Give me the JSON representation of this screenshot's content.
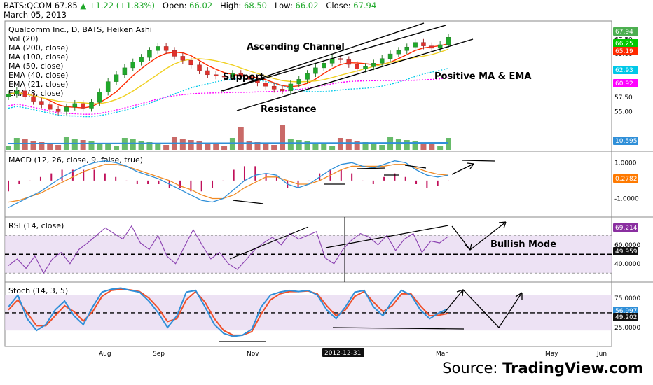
{
  "header": {
    "symbol": "BATS:QCOM",
    "last": "67.85",
    "change": "+1.22 (+1.83%)",
    "open_label": "Open:",
    "open": "66.02",
    "high_label": "High:",
    "high": "68.50",
    "low_label": "Low:",
    "low": "66.02",
    "close_label": "Close:",
    "close": "67.94",
    "date": "March 05, 2013"
  },
  "source": {
    "prefix": "Source: ",
    "brand": "TradingView.com"
  },
  "colors": {
    "up": "#1fa82a",
    "down": "#e1312b",
    "macd": "#2f8fd8",
    "signal": "#f08a24",
    "hist": "#c0105a",
    "rsi": "#8a3fb0",
    "stoch_k": "#2f8fd8",
    "stoch_d": "#f0502a",
    "volma": "#2f8fd8",
    "panel_fill": "#e6d5f0"
  },
  "chart_data": [
    {
      "type": "candlestick",
      "title": "Qualcomm Inc., D, BATS, Heiken Ashi",
      "legend": [
        "Vol (20)",
        "MA (200, close)",
        "MA (100, close)",
        "MA (50, close)",
        "EMA (40, close)",
        "EMA (21, close)",
        "EMA (8, close)"
      ],
      "x_ticks": [
        "Aug",
        "Sep",
        "Nov",
        "Mar",
        "May",
        "Jun"
      ],
      "y_ticks": [
        "67.50",
        "65.00",
        "62.50",
        "60.00",
        "57.50",
        "55.00"
      ],
      "ylim": [
        52.5,
        70.0
      ],
      "last_value_tags": [
        {
          "value": "67.94",
          "color": "#4caf50"
        },
        {
          "value": "66.25",
          "color": "#00c800"
        },
        {
          "value": "65.19",
          "color": "#ff2a00"
        },
        {
          "value": "62.93",
          "color": "#00c8e8"
        },
        {
          "value": "60.92",
          "color": "#ff00ff"
        },
        {
          "value": "10.595M",
          "color": "#2f8fd8"
        }
      ],
      "annotations": [
        "Ascending Channel",
        "Support",
        "Resistance",
        "Positive MA & EMA"
      ],
      "date_marker": "2012-12-31",
      "close_series_approx": [
        58.0,
        58.6,
        57.6,
        56.8,
        56.2,
        55.4,
        55.0,
        55.8,
        56.4,
        55.6,
        56.6,
        58.4,
        60.2,
        61.4,
        62.6,
        63.6,
        64.4,
        65.6,
        66.3,
        65.6,
        64.6,
        63.9,
        63.1,
        62.1,
        61.4,
        61.2,
        61.0,
        61.6,
        61.1,
        60.6,
        60.0,
        59.4,
        58.9,
        58.6,
        59.8,
        60.6,
        61.6,
        62.6,
        63.4,
        64.2,
        64.0,
        63.2,
        62.4,
        62.8,
        63.4,
        64.2,
        65.0,
        65.6,
        66.2,
        67.0,
        66.4,
        66.0,
        66.6,
        67.9
      ]
    },
    {
      "type": "line",
      "title": "MACD (12, 26, close, 9, false, true)",
      "y_ticks": [
        "1.0000",
        "-1.0000"
      ],
      "ylim": [
        -1.8,
        1.4
      ],
      "last_value": "0.2782",
      "macd_approx": [
        -1.5,
        -1.2,
        -0.9,
        -0.6,
        -0.2,
        0.2,
        0.5,
        0.8,
        1.0,
        1.1,
        1.0,
        0.8,
        0.5,
        0.3,
        0.1,
        -0.2,
        -0.5,
        -0.8,
        -1.1,
        -1.2,
        -1.0,
        -0.5,
        0.0,
        0.3,
        0.4,
        0.3,
        -0.2,
        -0.4,
        -0.2,
        0.2,
        0.6,
        0.9,
        1.0,
        0.8,
        0.7,
        0.9,
        1.1,
        1.0,
        0.6,
        0.3,
        0.2,
        0.3
      ],
      "signal_approx": [
        -1.2,
        -1.1,
        -0.9,
        -0.7,
        -0.4,
        -0.1,
        0.2,
        0.5,
        0.7,
        0.9,
        0.9,
        0.8,
        0.6,
        0.4,
        0.2,
        0.0,
        -0.3,
        -0.5,
        -0.8,
        -1.0,
        -1.0,
        -0.8,
        -0.4,
        -0.1,
        0.2,
        0.2,
        0.0,
        -0.2,
        -0.2,
        0.0,
        0.3,
        0.6,
        0.8,
        0.8,
        0.8,
        0.8,
        0.9,
        0.9,
        0.7,
        0.5,
        0.35,
        0.3
      ]
    },
    {
      "type": "line",
      "title": "RSI (14, close)",
      "y_ticks": [
        "60.0000",
        "40.0000"
      ],
      "ylim": [
        25,
        85
      ],
      "last_value": "69.2147",
      "mid_value": "49.9591",
      "annotation": "Bullish Mode",
      "rsi_approx": [
        38,
        45,
        35,
        48,
        30,
        45,
        52,
        40,
        55,
        62,
        70,
        78,
        72,
        66,
        80,
        62,
        55,
        70,
        48,
        40,
        58,
        76,
        60,
        45,
        52,
        40,
        34,
        44,
        55,
        62,
        68,
        60,
        72,
        66,
        70,
        74,
        46,
        40,
        55,
        65,
        72,
        68,
        60,
        70,
        54,
        66,
        72,
        52,
        64,
        62,
        69
      ]
    },
    {
      "type": "line",
      "title": "Stoch (14, 3, 5)",
      "y_ticks": [
        "75.0000",
        "25.0000"
      ],
      "ylim": [
        0,
        95
      ],
      "last_k": "56.9971",
      "last_d": "49.2026",
      "k_approx": [
        60,
        80,
        40,
        20,
        30,
        55,
        70,
        45,
        30,
        60,
        85,
        90,
        92,
        88,
        85,
        70,
        50,
        25,
        45,
        85,
        88,
        60,
        30,
        15,
        10,
        12,
        22,
        60,
        80,
        85,
        88,
        86,
        88,
        80,
        55,
        40,
        60,
        85,
        88,
        60,
        45,
        70,
        88,
        80,
        55,
        40,
        50,
        57
      ],
      "d_approx": [
        55,
        72,
        50,
        28,
        28,
        45,
        62,
        52,
        36,
        52,
        78,
        88,
        90,
        89,
        86,
        75,
        58,
        35,
        40,
        72,
        86,
        68,
        40,
        20,
        12,
        12,
        18,
        48,
        72,
        82,
        86,
        86,
        87,
        82,
        62,
        45,
        55,
        78,
        86,
        68,
        52,
        62,
        82,
        82,
        62,
        45,
        46,
        49
      ]
    }
  ]
}
